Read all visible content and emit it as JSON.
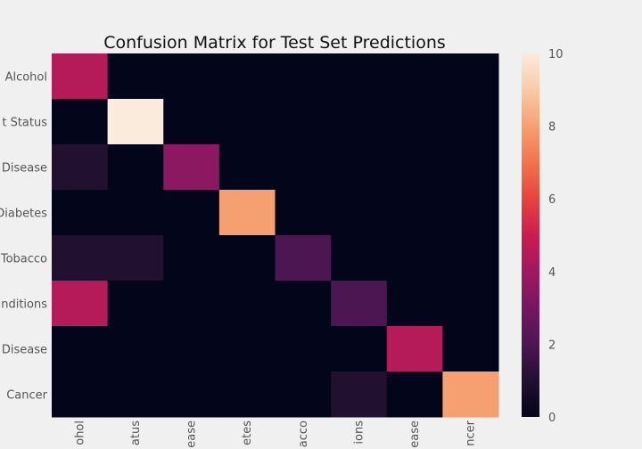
{
  "chart_data": {
    "type": "heatmap",
    "title": "Confusion Matrix for Test Set Predictions",
    "rows": [
      "Alcohol",
      "t Status",
      "Disease",
      "Diabetes",
      "Tobacco",
      "nditions",
      "Disease",
      "Cancer"
    ],
    "columns": [
      "ohol",
      "atus",
      "ease",
      "etes",
      "acco",
      "ions",
      "ease",
      "ncer"
    ],
    "values": [
      [
        4.5,
        0,
        0,
        0,
        0,
        0,
        0,
        0
      ],
      [
        0,
        10,
        0,
        0,
        0,
        0,
        0,
        0
      ],
      [
        1,
        0,
        3.5,
        0,
        0,
        0,
        0,
        0
      ],
      [
        0,
        0,
        0,
        8,
        0,
        0,
        0,
        0
      ],
      [
        1,
        1,
        0,
        0,
        2,
        0,
        0,
        0
      ],
      [
        4.5,
        0,
        0,
        0,
        0,
        2,
        0,
        0
      ],
      [
        0,
        0,
        0,
        0,
        0,
        0,
        4.5,
        0
      ],
      [
        0,
        0,
        0,
        0,
        0,
        1,
        0,
        8
      ]
    ],
    "colorbar": {
      "min": 0,
      "max": 10,
      "ticks": [
        "0",
        "2",
        "4",
        "6",
        "8",
        "10"
      ]
    },
    "colormap": "rocket"
  }
}
